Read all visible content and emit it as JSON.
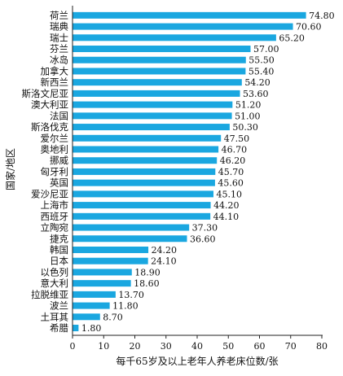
{
  "chart_data": {
    "type": "bar",
    "orientation": "horizontal",
    "xlabel": "每千65岁及以上老年人养老床位数/张",
    "ylabel": "国家/地区",
    "xlim": [
      0,
      80
    ],
    "xticks": [
      0,
      10,
      20,
      30,
      40,
      50,
      60,
      70,
      80
    ],
    "bar_color": "#1aa7e0",
    "grid": false,
    "categories": [
      "荷兰",
      "瑞典",
      "瑞士",
      "芬兰",
      "冰岛",
      "加拿大",
      "新西兰",
      "斯洛文尼亚",
      "澳大利亚",
      "法国",
      "斯洛伐克",
      "爱尔兰",
      "奥地利",
      "挪威",
      "匈牙利",
      "英国",
      "爱沙尼亚",
      "上海市",
      "西班牙",
      "立陶宛",
      "捷克",
      "韩国",
      "日本",
      "以色列",
      "意大利",
      "拉脱维亚",
      "波兰",
      "土耳其",
      "希腊"
    ],
    "values": [
      74.8,
      70.6,
      65.2,
      57.0,
      55.5,
      55.4,
      54.2,
      53.6,
      51.2,
      51.0,
      50.3,
      47.5,
      46.7,
      46.2,
      45.7,
      45.6,
      45.1,
      44.2,
      44.1,
      37.3,
      36.6,
      24.2,
      24.1,
      18.9,
      18.6,
      13.7,
      11.8,
      8.7,
      1.8
    ],
    "value_labels": [
      "74.80",
      "70.60",
      "65.20",
      "57.00",
      "55.50",
      "55.40",
      "54.20",
      "53.60",
      "51.20",
      "51.00",
      "50.30",
      "47.50",
      "46.70",
      "46.20",
      "45.70",
      "45.60",
      "45.10",
      "44.20",
      "44.10",
      "37.30",
      "36.60",
      "24.20",
      "24.10",
      "18.90",
      "18.60",
      "13.70",
      "11.80",
      "8.70",
      "1.80"
    ]
  }
}
